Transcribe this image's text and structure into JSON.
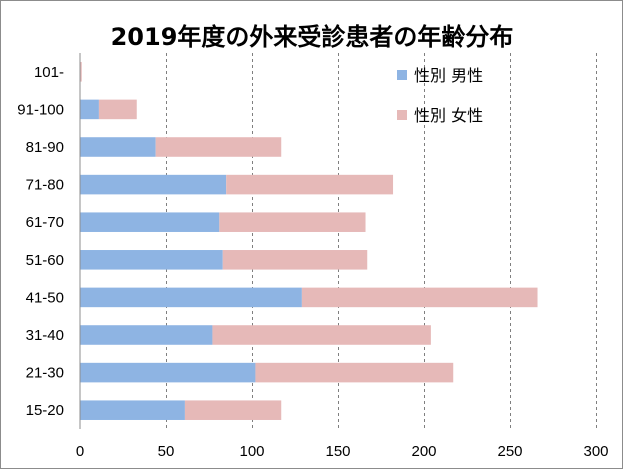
{
  "chart_data": {
    "type": "bar",
    "orientation": "horizontal",
    "stacked": true,
    "title": "2019年度の外来受診患者の年齢分布",
    "categories": [
      "15-20",
      "21-30",
      "31-40",
      "41-50",
      "51-60",
      "61-70",
      "71-80",
      "81-90",
      "91-100",
      "101-"
    ],
    "series": [
      {
        "name": "性別 男性",
        "color": "#8eb4e3",
        "values": [
          61,
          102,
          77,
          129,
          83,
          81,
          85,
          44,
          11,
          0
        ]
      },
      {
        "name": "性別 女性",
        "color": "#e6b9b8",
        "values": [
          56,
          115,
          127,
          137,
          84,
          85,
          97,
          73,
          22,
          1
        ]
      }
    ],
    "xlim": [
      0,
      300
    ],
    "x_ticks": [
      "0",
      "50",
      "100",
      "150",
      "200",
      "250",
      "300"
    ],
    "grid": "vertical dashed",
    "legend_position": "top-right",
    "xlabel": "",
    "ylabel": ""
  }
}
